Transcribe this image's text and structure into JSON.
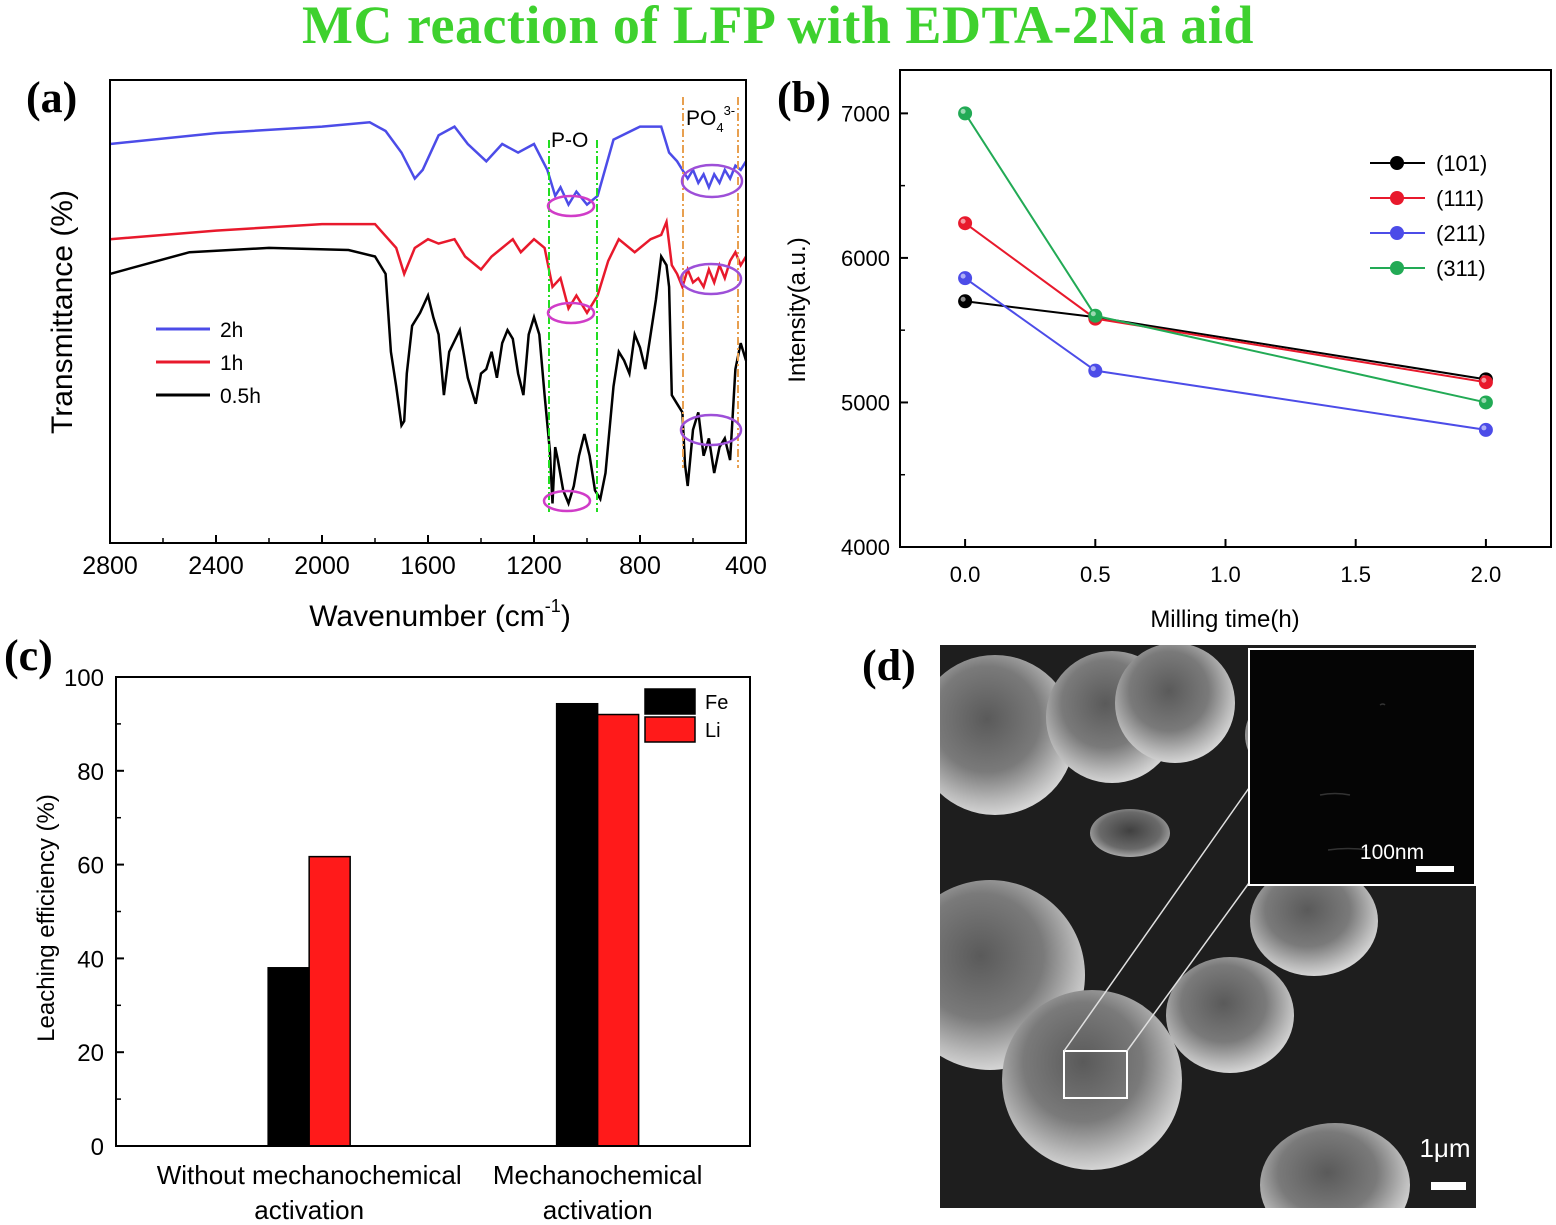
{
  "title": "MC reaction of LFP with EDTA-2Na aid",
  "colors": {
    "title": "#3ed12e",
    "black": "#000000",
    "red": "#e8192c",
    "blue": "#4c4ce8",
    "green": "#22aa55",
    "magenta": "#d03cc8",
    "purple": "#9d4fd8",
    "green_dash": "#22dd22",
    "orange_dash": "#e8a050"
  },
  "panels": {
    "a": "(a)",
    "b": "(b)",
    "c": "(c)",
    "d": "(d)"
  },
  "chart_data": [
    {
      "panel": "a",
      "type": "line",
      "title": "",
      "xlabel": "Wavenumber (cm",
      "xlabel_sup": "-1",
      "xlabel_end": ")",
      "ylabel": "Transmittance (%)",
      "xlim": [
        2800,
        400
      ],
      "xticks": [
        2800,
        2400,
        2000,
        1600,
        1200,
        800,
        400
      ],
      "annotations": {
        "po": "P-O",
        "po4": "PO",
        "po4_sub": "4",
        "po4_sup": "3-"
      },
      "legend": [
        {
          "name": "2h",
          "color": "#4c4ce8"
        },
        {
          "name": "1h",
          "color": "#e8192c"
        },
        {
          "name": "0.5h",
          "color": "#000000"
        }
      ],
      "series": [
        {
          "name": "2h",
          "color": "#4c4ce8",
          "points": [
            [
              2800,
              88
            ],
            [
              2400,
              90.5
            ],
            [
              2000,
              92
            ],
            [
              1820,
              93
            ],
            [
              1760,
              91
            ],
            [
              1700,
              86
            ],
            [
              1650,
              80
            ],
            [
              1620,
              82
            ],
            [
              1560,
              90
            ],
            [
              1500,
              92
            ],
            [
              1450,
              88
            ],
            [
              1380,
              84
            ],
            [
              1320,
              88
            ],
            [
              1260,
              86
            ],
            [
              1200,
              88
            ],
            [
              1150,
              82
            ],
            [
              1120,
              76
            ],
            [
              1100,
              78
            ],
            [
              1070,
              74
            ],
            [
              1040,
              77
            ],
            [
              1000,
              74
            ],
            [
              960,
              76
            ],
            [
              900,
              89
            ],
            [
              800,
              92
            ],
            [
              720,
              92
            ],
            [
              690,
              86
            ],
            [
              660,
              84
            ],
            [
              640,
              82
            ],
            [
              620,
              80
            ],
            [
              600,
              82
            ],
            [
              580,
              79
            ],
            [
              560,
              81
            ],
            [
              540,
              78
            ],
            [
              520,
              81
            ],
            [
              500,
              79
            ],
            [
              480,
              82
            ],
            [
              460,
              80
            ],
            [
              440,
              83
            ],
            [
              420,
              82
            ],
            [
              400,
              84
            ]
          ]
        },
        {
          "name": "1h",
          "color": "#e8192c",
          "points": [
            [
              2800,
              66
            ],
            [
              2400,
              68
            ],
            [
              2000,
              69.5
            ],
            [
              1800,
              69.5
            ],
            [
              1720,
              64
            ],
            [
              1690,
              58
            ],
            [
              1650,
              64
            ],
            [
              1600,
              66
            ],
            [
              1560,
              65
            ],
            [
              1500,
              66
            ],
            [
              1460,
              62
            ],
            [
              1400,
              59
            ],
            [
              1360,
              62
            ],
            [
              1320,
              64
            ],
            [
              1280,
              66
            ],
            [
              1250,
              63
            ],
            [
              1200,
              66
            ],
            [
              1160,
              64
            ],
            [
              1130,
              55
            ],
            [
              1100,
              57
            ],
            [
              1070,
              50
            ],
            [
              1040,
              53
            ],
            [
              1000,
              49
            ],
            [
              960,
              53
            ],
            [
              920,
              61
            ],
            [
              880,
              66
            ],
            [
              820,
              63
            ],
            [
              760,
              66
            ],
            [
              720,
              67
            ],
            [
              700,
              70
            ],
            [
              680,
              60
            ],
            [
              660,
              58
            ],
            [
              640,
              55
            ],
            [
              620,
              59
            ],
            [
              600,
              56
            ],
            [
              580,
              57
            ],
            [
              560,
              55
            ],
            [
              540,
              59
            ],
            [
              520,
              56
            ],
            [
              500,
              60
            ],
            [
              480,
              57
            ],
            [
              460,
              61
            ],
            [
              440,
              63
            ],
            [
              420,
              60
            ],
            [
              400,
              62
            ]
          ]
        },
        {
          "name": "0.5h",
          "color": "#000000",
          "points": [
            [
              2800,
              58
            ],
            [
              2500,
              63
            ],
            [
              2200,
              64
            ],
            [
              1900,
              63.5
            ],
            [
              1800,
              62
            ],
            [
              1760,
              58
            ],
            [
              1740,
              40
            ],
            [
              1720,
              32
            ],
            [
              1700,
              23
            ],
            [
              1690,
              24
            ],
            [
              1680,
              35
            ],
            [
              1660,
              46
            ],
            [
              1630,
              49
            ],
            [
              1600,
              53
            ],
            [
              1580,
              48
            ],
            [
              1560,
              44
            ],
            [
              1540,
              30
            ],
            [
              1520,
              40
            ],
            [
              1480,
              45
            ],
            [
              1450,
              34
            ],
            [
              1420,
              28
            ],
            [
              1400,
              35
            ],
            [
              1380,
              36
            ],
            [
              1360,
              40
            ],
            [
              1340,
              34
            ],
            [
              1320,
              42
            ],
            [
              1300,
              45
            ],
            [
              1280,
              43
            ],
            [
              1260,
              35
            ],
            [
              1240,
              30
            ],
            [
              1220,
              44
            ],
            [
              1200,
              48
            ],
            [
              1180,
              44
            ],
            [
              1160,
              30
            ],
            [
              1140,
              17
            ],
            [
              1130,
              5
            ],
            [
              1120,
              18
            ],
            [
              1110,
              15
            ],
            [
              1090,
              8
            ],
            [
              1070,
              5
            ],
            [
              1050,
              9
            ],
            [
              1030,
              16
            ],
            [
              1010,
              21
            ],
            [
              990,
              16
            ],
            [
              970,
              8
            ],
            [
              950,
              6
            ],
            [
              930,
              12
            ],
            [
              900,
              32
            ],
            [
              880,
              40
            ],
            [
              860,
              38
            ],
            [
              840,
              35
            ],
            [
              820,
              44
            ],
            [
              800,
              41
            ],
            [
              780,
              36
            ],
            [
              760,
              44
            ],
            [
              740,
              52
            ],
            [
              720,
              62
            ],
            [
              700,
              60
            ],
            [
              690,
              55
            ],
            [
              680,
              30
            ],
            [
              660,
              28
            ],
            [
              640,
              26
            ],
            [
              630,
              14
            ],
            [
              620,
              9
            ],
            [
              600,
              22
            ],
            [
              580,
              26
            ],
            [
              560,
              16
            ],
            [
              540,
              20
            ],
            [
              520,
              12
            ],
            [
              500,
              18
            ],
            [
              480,
              20
            ],
            [
              460,
              15
            ],
            [
              440,
              36
            ],
            [
              420,
              42
            ],
            [
              400,
              38
            ]
          ]
        }
      ]
    },
    {
      "panel": "b",
      "type": "line",
      "title": "",
      "xlabel": "Milling time(h)",
      "ylabel": "Intensity(a.u.)",
      "xlim": [
        -0.25,
        2.25
      ],
      "ylim": [
        4000,
        7300
      ],
      "xticks": [
        "0.0",
        "0.5",
        "1.0",
        "1.5",
        "2.0"
      ],
      "yticks": [
        4000,
        5000,
        6000,
        7000
      ],
      "x": [
        0.0,
        0.5,
        2.0
      ],
      "series": [
        {
          "name": "(101)",
          "color": "#000000",
          "values": [
            5700,
            5590,
            5160
          ]
        },
        {
          "name": "(111)",
          "color": "#e8192c",
          "values": [
            6240,
            5580,
            5140
          ]
        },
        {
          "name": "(211)",
          "color": "#4c4ce8",
          "values": [
            5860,
            5220,
            4810
          ]
        },
        {
          "name": "(311)",
          "color": "#22aa55",
          "values": [
            7000,
            5600,
            5000
          ]
        }
      ]
    },
    {
      "panel": "c",
      "type": "bar",
      "title": "",
      "xlabel": "",
      "ylabel": "Leaching efficiency (%)",
      "ylim": [
        0,
        100
      ],
      "yticks": [
        0,
        20,
        40,
        60,
        80,
        100
      ],
      "categories": [
        [
          "Without mechanochemical",
          "activation"
        ],
        [
          "Mechanochemical",
          "activation"
        ]
      ],
      "series": [
        {
          "name": "Fe",
          "color": "#000000",
          "values": [
            38,
            94.3
          ]
        },
        {
          "name": "Li",
          "color": "#ff1a1a",
          "values": [
            61.7,
            92
          ]
        }
      ]
    }
  ],
  "sem": {
    "inset_scale": "100nm",
    "main_scale": "1μm"
  }
}
